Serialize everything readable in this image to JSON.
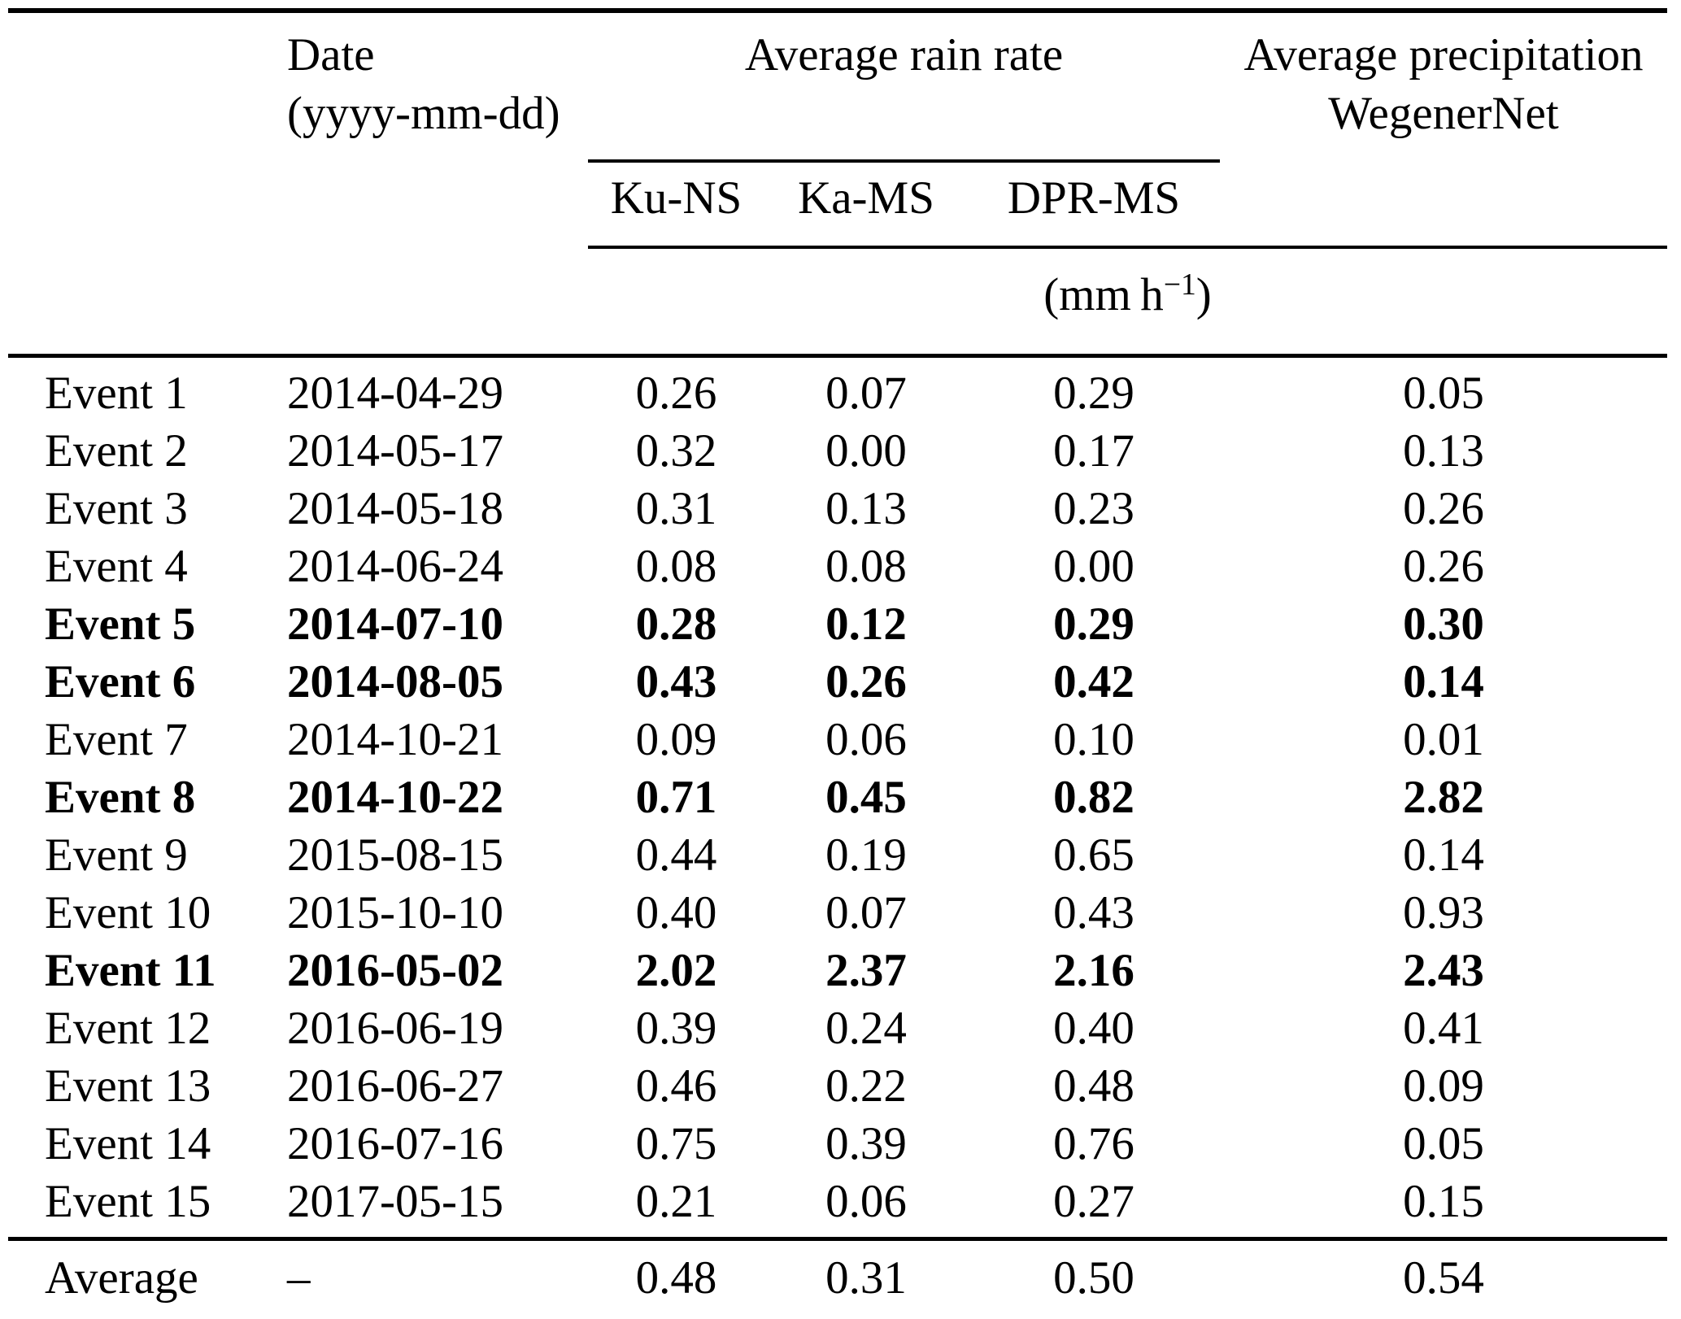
{
  "table": {
    "header": {
      "date_line1": "Date",
      "date_line2": "(yyyy-mm-dd)",
      "rain_rate_group": "Average rain rate",
      "precip_line1": "Average precipitation",
      "precip_line2": "WegenerNet",
      "subcols": {
        "ku_ns": "Ku-NS",
        "ka_ms": "Ka-MS",
        "dpr_ms": "DPR-MS"
      },
      "unit_prefix": "(mm h",
      "unit_sup": "−1",
      "unit_suffix": ")"
    },
    "rows": [
      {
        "event": "Event 1",
        "date": "2014-04-29",
        "ku_ns": "0.26",
        "ka_ms": "0.07",
        "dpr_ms": "0.29",
        "wegenernet": "0.05",
        "bold": false
      },
      {
        "event": "Event 2",
        "date": "2014-05-17",
        "ku_ns": "0.32",
        "ka_ms": "0.00",
        "dpr_ms": "0.17",
        "wegenernet": "0.13",
        "bold": false
      },
      {
        "event": "Event 3",
        "date": "2014-05-18",
        "ku_ns": "0.31",
        "ka_ms": "0.13",
        "dpr_ms": "0.23",
        "wegenernet": "0.26",
        "bold": false
      },
      {
        "event": "Event 4",
        "date": "2014-06-24",
        "ku_ns": "0.08",
        "ka_ms": "0.08",
        "dpr_ms": "0.00",
        "wegenernet": "0.26",
        "bold": false
      },
      {
        "event": "Event 5",
        "date": "2014-07-10",
        "ku_ns": "0.28",
        "ka_ms": "0.12",
        "dpr_ms": "0.29",
        "wegenernet": "0.30",
        "bold": true
      },
      {
        "event": "Event 6",
        "date": "2014-08-05",
        "ku_ns": "0.43",
        "ka_ms": "0.26",
        "dpr_ms": "0.42",
        "wegenernet": "0.14",
        "bold": true
      },
      {
        "event": "Event 7",
        "date": "2014-10-21",
        "ku_ns": "0.09",
        "ka_ms": "0.06",
        "dpr_ms": "0.10",
        "wegenernet": "0.01",
        "bold": false
      },
      {
        "event": "Event 8",
        "date": "2014-10-22",
        "ku_ns": "0.71",
        "ka_ms": "0.45",
        "dpr_ms": "0.82",
        "wegenernet": "2.82",
        "bold": true
      },
      {
        "event": "Event 9",
        "date": "2015-08-15",
        "ku_ns": "0.44",
        "ka_ms": "0.19",
        "dpr_ms": "0.65",
        "wegenernet": "0.14",
        "bold": false
      },
      {
        "event": "Event 10",
        "date": "2015-10-10",
        "ku_ns": "0.40",
        "ka_ms": "0.07",
        "dpr_ms": "0.43",
        "wegenernet": "0.93",
        "bold": false
      },
      {
        "event": "Event 11",
        "date": "2016-05-02",
        "ku_ns": "2.02",
        "ka_ms": "2.37",
        "dpr_ms": "2.16",
        "wegenernet": "2.43",
        "bold": true
      },
      {
        "event": "Event 12",
        "date": "2016-06-19",
        "ku_ns": "0.39",
        "ka_ms": "0.24",
        "dpr_ms": "0.40",
        "wegenernet": "0.41",
        "bold": false
      },
      {
        "event": "Event 13",
        "date": "2016-06-27",
        "ku_ns": "0.46",
        "ka_ms": "0.22",
        "dpr_ms": "0.48",
        "wegenernet": "0.09",
        "bold": false
      },
      {
        "event": "Event 14",
        "date": "2016-07-16",
        "ku_ns": "0.75",
        "ka_ms": "0.39",
        "dpr_ms": "0.76",
        "wegenernet": "0.05",
        "bold": false
      },
      {
        "event": "Event 15",
        "date": "2017-05-15",
        "ku_ns": "0.21",
        "ka_ms": "0.06",
        "dpr_ms": "0.27",
        "wegenernet": "0.15",
        "bold": false
      }
    ],
    "footer": {
      "event": "Average",
      "date": "–",
      "ku_ns": "0.48",
      "ka_ms": "0.31",
      "dpr_ms": "0.50",
      "wegenernet": "0.54"
    }
  }
}
